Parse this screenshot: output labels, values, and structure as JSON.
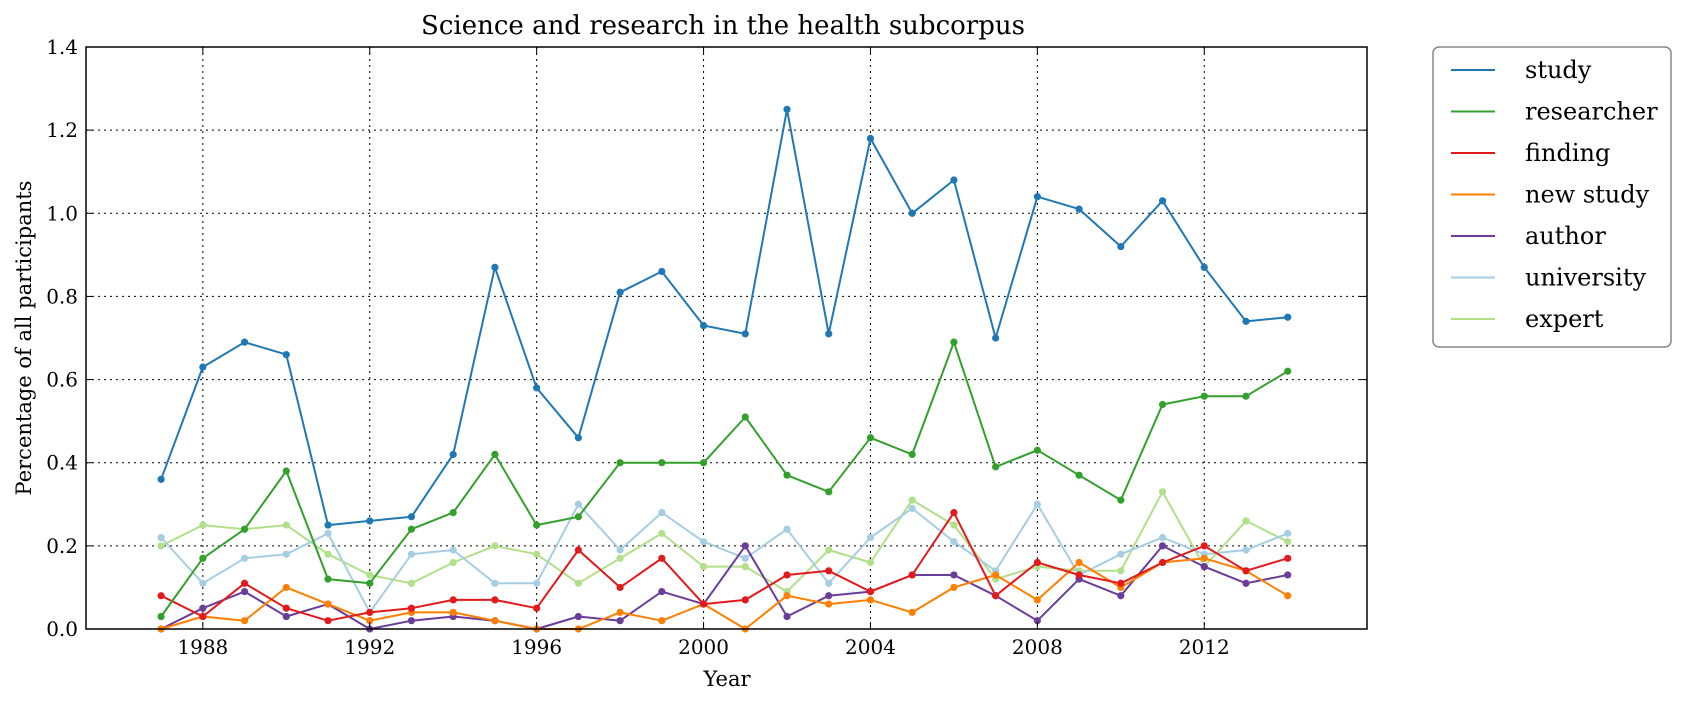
{
  "chart_data": {
    "type": "line",
    "title": "Science and research in the health subcorpus",
    "xlabel": "Year",
    "ylabel": "Percentage of all participants",
    "xlim": [
      1985.2,
      2015.9
    ],
    "ylim": [
      0.0,
      1.4
    ],
    "xticks": [
      1988,
      1992,
      1996,
      2000,
      2004,
      2008,
      2012
    ],
    "xtick_labels": [
      "1988",
      "1992",
      "1996",
      "2000",
      "2004",
      "2008",
      "2012"
    ],
    "yticks": [
      0.0,
      0.2,
      0.4,
      0.6,
      0.8,
      1.0,
      1.2,
      1.4
    ],
    "ytick_labels": [
      "0.0",
      "0.2",
      "0.4",
      "0.6",
      "0.8",
      "1.0",
      "1.2",
      "1.4"
    ],
    "grid": true,
    "legend_position": "outside-right-top",
    "x": [
      1987,
      1988,
      1989,
      1990,
      1991,
      1992,
      1993,
      1994,
      1995,
      1996,
      1997,
      1998,
      1999,
      2000,
      2001,
      2002,
      2003,
      2004,
      2005,
      2006,
      2007,
      2008,
      2009,
      2010,
      2011,
      2012,
      2013,
      2014
    ],
    "series": [
      {
        "name": "study",
        "color": "#1f78b4",
        "values": [
          0.36,
          0.63,
          0.69,
          0.66,
          0.25,
          0.26,
          0.27,
          0.42,
          0.87,
          0.58,
          0.46,
          0.81,
          0.86,
          0.73,
          0.71,
          1.25,
          0.71,
          1.18,
          1.0,
          1.08,
          0.7,
          1.04,
          1.01,
          0.92,
          1.03,
          0.87,
          0.74,
          0.75
        ]
      },
      {
        "name": "researcher",
        "color": "#33a02c",
        "values": [
          0.03,
          0.17,
          0.24,
          0.38,
          0.12,
          0.11,
          0.24,
          0.28,
          0.42,
          0.25,
          0.27,
          0.4,
          0.4,
          0.4,
          0.51,
          0.37,
          0.33,
          0.46,
          0.42,
          0.69,
          0.39,
          0.43,
          0.37,
          0.31,
          0.54,
          0.56,
          0.56,
          0.62
        ]
      },
      {
        "name": "finding",
        "color": "#e31a1c",
        "values": [
          0.08,
          0.03,
          0.11,
          0.05,
          0.02,
          0.04,
          0.05,
          0.07,
          0.07,
          0.05,
          0.19,
          0.1,
          0.17,
          0.06,
          0.07,
          0.13,
          0.14,
          0.09,
          0.13,
          0.28,
          0.08,
          0.16,
          0.13,
          0.11,
          0.16,
          0.2,
          0.14,
          0.17
        ]
      },
      {
        "name": "new study",
        "color": "#ff7f00",
        "values": [
          0.0,
          0.03,
          0.02,
          0.1,
          0.06,
          0.02,
          0.04,
          0.04,
          0.02,
          0.0,
          0.0,
          0.04,
          0.02,
          0.06,
          0.0,
          0.08,
          0.06,
          0.07,
          0.04,
          0.1,
          0.13,
          0.07,
          0.16,
          0.1,
          0.16,
          0.17,
          0.14,
          0.08
        ]
      },
      {
        "name": "author",
        "color": "#6a3d9a",
        "values": [
          0.0,
          0.05,
          0.09,
          0.03,
          0.06,
          0.0,
          0.02,
          0.03,
          0.02,
          0.0,
          0.03,
          0.02,
          0.09,
          0.06,
          0.2,
          0.03,
          0.08,
          0.09,
          0.13,
          0.13,
          0.08,
          0.02,
          0.12,
          0.08,
          0.2,
          0.15,
          0.11,
          0.13
        ]
      },
      {
        "name": "university",
        "color": "#a6cee3",
        "values": [
          0.22,
          0.11,
          0.17,
          0.18,
          0.23,
          0.04,
          0.18,
          0.19,
          0.11,
          0.11,
          0.3,
          0.19,
          0.28,
          0.21,
          0.17,
          0.24,
          0.11,
          0.22,
          0.29,
          0.21,
          0.14,
          0.3,
          0.13,
          0.18,
          0.22,
          0.18,
          0.19,
          0.23
        ]
      },
      {
        "name": "expert",
        "color": "#b2df8a",
        "values": [
          0.2,
          0.25,
          0.24,
          0.25,
          0.18,
          0.13,
          0.11,
          0.16,
          0.2,
          0.18,
          0.11,
          0.17,
          0.23,
          0.15,
          0.15,
          0.09,
          0.19,
          0.16,
          0.31,
          0.25,
          0.12,
          0.15,
          0.14,
          0.14,
          0.33,
          0.15,
          0.26,
          0.21
        ]
      }
    ]
  }
}
